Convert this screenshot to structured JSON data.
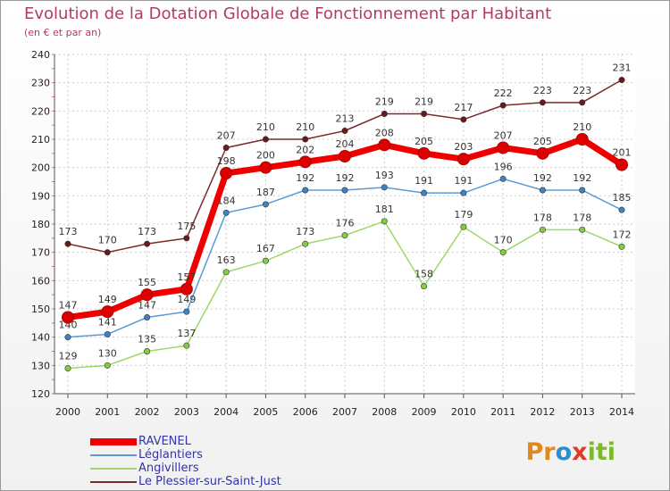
{
  "header": {
    "title": "Evolution de la Dotation Globale de Fonctionnement par Habitant",
    "subtitle": "(en € et par an)"
  },
  "logo": {
    "parts": [
      "Pr",
      "o",
      "x",
      "iti"
    ]
  },
  "colors": {
    "title": "#b23a6a",
    "grid": "#cccccc",
    "axis_ticks": "#e07070"
  },
  "chart_data": {
    "type": "line",
    "title": "Evolution de la Dotation Globale de Fonctionnement par Habitant",
    "subtitle": "(en € et par an)",
    "xlabel": "",
    "ylabel": "",
    "ylim": [
      120,
      240
    ],
    "yticks": [
      120,
      130,
      140,
      150,
      160,
      170,
      180,
      190,
      200,
      210,
      220,
      230,
      240
    ],
    "categories": [
      "2000",
      "2001",
      "2002",
      "2003",
      "2004",
      "2005",
      "2006",
      "2007",
      "2008",
      "2009",
      "2010",
      "2011",
      "2012",
      "2013",
      "2014"
    ],
    "grid": true,
    "legend_position": "bottom-left",
    "series": [
      {
        "name": "RAVENEL",
        "color": "#ee0000",
        "marker": "#dd0000",
        "bold": true,
        "values": [
          147,
          149,
          155,
          157,
          198,
          200,
          202,
          204,
          208,
          205,
          203,
          207,
          205,
          210,
          201
        ]
      },
      {
        "name": "Léglantiers",
        "color": "#5b9bd5",
        "marker": "#3f83c2",
        "bold": false,
        "values": [
          140,
          141,
          147,
          149,
          184,
          187,
          192,
          192,
          193,
          191,
          191,
          196,
          192,
          192,
          185
        ]
      },
      {
        "name": "Angivillers",
        "color": "#9ed868",
        "marker": "#7fcf3f",
        "bold": false,
        "values": [
          129,
          130,
          135,
          137,
          163,
          167,
          173,
          176,
          181,
          158,
          179,
          170,
          178,
          178,
          172
        ]
      },
      {
        "name": "Le Plessier-sur-Saint-Just",
        "color": "#7a2a2a",
        "marker": "#6a1818",
        "bold": false,
        "values": [
          173,
          170,
          173,
          175,
          207,
          210,
          210,
          213,
          219,
          219,
          217,
          222,
          223,
          223,
          231
        ]
      }
    ]
  }
}
